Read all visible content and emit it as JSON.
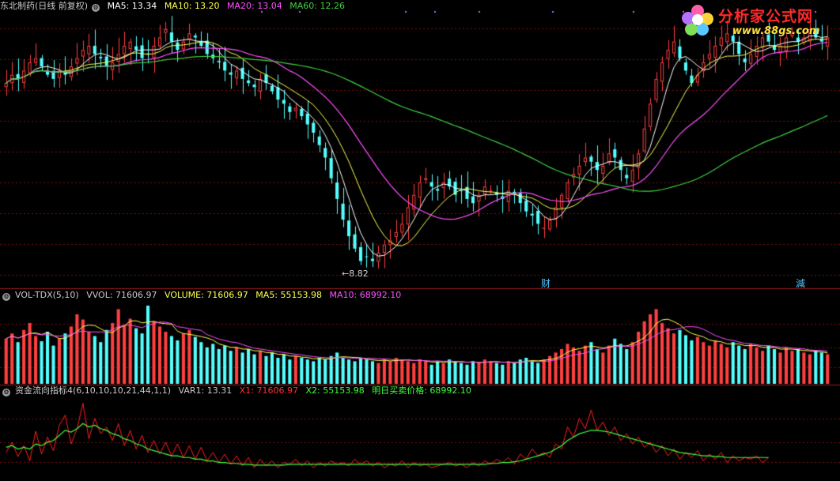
{
  "price_header": {
    "title": "东北制药(日线 前复权)",
    "ma5": "MA5: 13.34",
    "ma10": "MA10: 13.20",
    "ma20": "MA20: 13.04",
    "ma60": "MA60: 12.26"
  },
  "volume_header": {
    "title": "VOL-TDX(5,10)",
    "vvol": "VVOL: 71606.97",
    "volume": "VOLUME: 71606.97",
    "ma5": "MA5: 55153.98",
    "ma10": "MA10: 68992.10"
  },
  "flow_header": {
    "title": "资金流向指标4(6,10,10,10,21,44,1,1)",
    "var1": "VAR1: 13.31",
    "x1": "X1: 71606.97",
    "x2": "X2: 55153.98",
    "next": "明日买卖价格: 68992.10"
  },
  "logo": {
    "name": "分析家公式网",
    "url": "www.88gs.com"
  },
  "markers": {
    "low_label": "8.82",
    "cai": "财",
    "jian": "減"
  },
  "colors": {
    "up": "#ff4040",
    "down": "#54ffff",
    "ma5": "#ffffff",
    "ma10": "#ffff50",
    "ma20": "#ff50ff",
    "ma60": "#40d040",
    "grid": "#7a1010",
    "flow_x1": "#ff2020",
    "flow_x2": "#40ff40"
  },
  "chart_data": [
    {
      "type": "candlestick",
      "title": "东北制药(日线 前复权)",
      "note": "approximate daily closes read from the screenshot (y range about 8.4 to 15.0)",
      "y_range": [
        8.4,
        15.0
      ],
      "low_marker": 8.82,
      "closes": [
        13.3,
        13.5,
        13.4,
        13.6,
        13.8,
        13.9,
        13.7,
        13.5,
        13.4,
        13.6,
        13.5,
        13.7,
        13.9,
        14.1,
        14.2,
        14.0,
        13.9,
        13.7,
        13.8,
        14.0,
        14.2,
        14.3,
        14.1,
        13.9,
        14.0,
        14.2,
        14.4,
        14.6,
        14.3,
        14.1,
        14.3,
        14.5,
        14.4,
        14.2,
        14.0,
        13.9,
        13.8,
        13.6,
        13.5,
        13.6,
        13.4,
        13.3,
        13.2,
        13.4,
        13.3,
        13.1,
        12.9,
        12.8,
        12.6,
        12.7,
        12.5,
        12.3,
        12.1,
        11.8,
        11.5,
        11.0,
        10.5,
        10.0,
        9.6,
        9.3,
        9.0,
        9.1,
        9.0,
        9.2,
        9.4,
        9.5,
        9.7,
        9.9,
        10.3,
        10.6,
        10.9,
        11.0,
        10.8,
        10.7,
        10.9,
        10.8,
        10.6,
        10.7,
        10.5,
        10.4,
        10.6,
        10.8,
        10.7,
        10.6,
        10.5,
        10.7,
        10.6,
        10.4,
        10.2,
        10.1,
        9.9,
        9.8,
        10.0,
        10.3,
        10.6,
        10.9,
        11.1,
        11.3,
        11.5,
        11.4,
        11.2,
        11.3,
        11.6,
        11.5,
        11.2,
        11.0,
        11.2,
        11.6,
        12.2,
        12.8,
        13.4,
        13.8,
        14.1,
        14.3,
        13.9,
        13.6,
        13.3,
        13.5,
        13.8,
        14.0,
        14.2,
        14.4,
        14.5,
        14.3,
        14.0,
        13.8,
        14.0,
        14.2,
        14.4,
        14.3,
        14.1,
        14.2,
        14.4,
        14.5,
        14.3,
        14.4,
        14.6,
        14.4,
        14.3,
        14.4
      ]
    },
    {
      "type": "bar",
      "title": "VOL-TDX(5,10)",
      "note": "relative daily volume, approximate",
      "values": [
        52,
        58,
        48,
        62,
        70,
        55,
        49,
        60,
        44,
        52,
        58,
        66,
        80,
        74,
        60,
        55,
        48,
        62,
        70,
        86,
        68,
        75,
        64,
        58,
        90,
        72,
        66,
        60,
        55,
        50,
        58,
        62,
        54,
        48,
        42,
        46,
        40,
        44,
        38,
        42,
        36,
        40,
        34,
        38,
        32,
        36,
        30,
        34,
        28,
        32,
        30,
        28,
        26,
        30,
        28,
        32,
        36,
        30,
        28,
        26,
        30,
        28,
        26,
        24,
        28,
        26,
        30,
        28,
        26,
        24,
        28,
        26,
        22,
        26,
        24,
        28,
        26,
        24,
        22,
        26,
        24,
        28,
        26,
        24,
        22,
        26,
        24,
        28,
        30,
        26,
        24,
        28,
        32,
        36,
        40,
        46,
        42,
        38,
        44,
        48,
        40,
        36,
        44,
        52,
        46,
        40,
        48,
        60,
        72,
        80,
        86,
        70,
        64,
        58,
        62,
        56,
        50,
        54,
        48,
        44,
        50,
        46,
        42,
        48,
        44,
        40,
        46,
        42,
        38,
        44,
        40,
        36,
        42,
        38,
        40,
        36,
        34,
        38,
        36,
        34
      ]
    },
    {
      "type": "line",
      "title": "资金流向指标4(6,10,10,10,21,44,1,1)",
      "series": [
        {
          "name": "X1",
          "values": [
            30,
            42,
            25,
            38,
            20,
            55,
            28,
            48,
            32,
            62,
            74,
            40,
            58,
            88,
            46,
            70,
            52,
            60,
            44,
            64,
            38,
            56,
            34,
            50,
            30,
            44,
            28,
            42,
            26,
            40,
            24,
            38,
            22,
            36,
            20,
            30,
            18,
            28,
            16,
            26,
            14,
            24,
            12,
            22,
            14,
            20,
            12,
            18,
            16,
            22,
            14,
            20,
            12,
            18,
            14,
            20,
            16,
            18,
            14,
            22,
            16,
            20,
            14,
            18,
            12,
            16,
            14,
            20,
            12,
            18,
            14,
            16,
            12,
            14,
            16,
            18,
            14,
            16,
            12,
            18,
            14,
            20,
            16,
            22,
            18,
            24,
            16,
            28,
            22,
            34,
            26,
            30,
            24,
            40,
            34,
            60,
            48,
            70,
            58,
            80,
            56,
            66,
            50,
            60,
            44,
            52,
            40,
            48,
            36,
            42,
            30,
            38,
            26,
            34,
            22,
            30,
            24,
            32,
            20,
            28,
            22,
            30,
            18,
            26,
            20,
            24,
            22,
            26,
            18,
            24
          ]
        },
        {
          "name": "X2",
          "values": [
            36,
            38,
            34,
            36,
            34,
            40,
            38,
            42,
            44,
            50,
            56,
            54,
            58,
            64,
            60,
            62,
            58,
            56,
            52,
            50,
            46,
            44,
            40,
            38,
            34,
            32,
            30,
            28,
            26,
            26,
            24,
            24,
            22,
            22,
            20,
            20,
            18,
            18,
            17,
            17,
            16,
            16,
            15,
            15,
            15,
            15,
            15,
            15,
            16,
            16,
            16,
            16,
            16,
            16,
            16,
            16,
            16,
            16,
            16,
            16,
            16,
            16,
            16,
            16,
            16,
            16,
            16,
            16,
            16,
            16,
            16,
            16,
            16,
            16,
            16,
            16,
            16,
            16,
            16,
            16,
            16,
            16,
            17,
            17,
            18,
            18,
            19,
            20,
            22,
            24,
            26,
            28,
            30,
            34,
            38,
            44,
            48,
            52,
            54,
            56,
            56,
            55,
            54,
            52,
            50,
            48,
            46,
            44,
            42,
            40,
            38,
            36,
            34,
            32,
            30,
            29,
            28,
            27,
            26,
            26,
            25,
            25,
            24,
            24,
            24,
            24,
            24,
            24,
            24,
            24
          ]
        }
      ]
    }
  ]
}
